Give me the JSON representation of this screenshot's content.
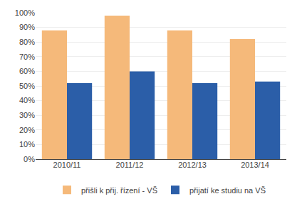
{
  "chart_data": {
    "type": "bar",
    "categories": [
      "2010/11",
      "2011/12",
      "2012/13",
      "2013/14"
    ],
    "series": [
      {
        "name": "přišli k přij. řízení - VŠ",
        "color": "#F5B97A",
        "values": [
          0.88,
          0.98,
          0.88,
          0.82
        ]
      },
      {
        "name": "přijatí ke studiu na VŠ",
        "color": "#2B5EA8",
        "values": [
          0.52,
          0.6,
          0.52,
          0.53
        ]
      }
    ],
    "ylim": [
      0.0,
      1.0
    ],
    "yticks": [
      {
        "value": 0.0,
        "label": "0%"
      },
      {
        "value": 0.1,
        "label": "10%"
      },
      {
        "value": 0.2,
        "label": "20%"
      },
      {
        "value": 0.3,
        "label": "30%"
      },
      {
        "value": 0.4,
        "label": "40%"
      },
      {
        "value": 0.5,
        "label": "50%"
      },
      {
        "value": 0.6,
        "label": "60%"
      },
      {
        "value": 0.7,
        "label": "70%"
      },
      {
        "value": 0.8,
        "label": "80%"
      },
      {
        "value": 0.9,
        "label": "90%"
      },
      {
        "value": 1.0,
        "label": "100%"
      }
    ],
    "grid": true,
    "legend": "bottom"
  }
}
